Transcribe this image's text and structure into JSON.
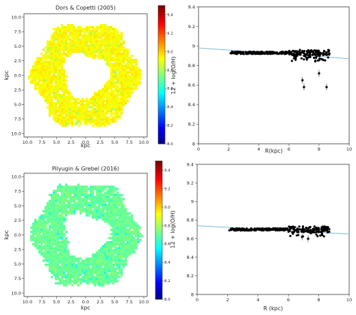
{
  "chart_data": [
    {
      "type": "heatmap",
      "title": "Dors & Copetti (2005)",
      "xlabel": "kpc",
      "ylabel": "kpc",
      "xticks": [
        "10.0",
        "7.5",
        "5.0",
        "2.5",
        "0.0",
        "2.5",
        "5.0",
        "7.5",
        "10.0"
      ],
      "yticks": [
        "10.0",
        "7.5",
        "5.0",
        "2.5",
        "0.0",
        "2.5",
        "5.0",
        "7.5",
        "10.0"
      ],
      "xlim": [
        -10,
        10
      ],
      "ylim": [
        -10,
        10
      ],
      "colorbar": {
        "ticks": [
          "9.4",
          "9.2",
          "9.0",
          "8.8",
          "8.6",
          "8.4",
          "8.2",
          "8.0"
        ],
        "range": [
          8.0,
          9.5
        ]
      },
      "map": {
        "shape": "ring",
        "inner_radius_kpc": 3.5,
        "outer_radius_kpc": 9.5,
        "typical_value": 8.94
      }
    },
    {
      "type": "scatter",
      "xlabel": "R(kpc)",
      "ylabel": "12 + log(O/H)",
      "xticks": [
        "0",
        "2",
        "4",
        "6",
        "8",
        "10"
      ],
      "yticks": [
        "9.4",
        "9.2",
        "9",
        "8.8",
        "8.6",
        "8.4",
        "8.2",
        "8"
      ],
      "xlim": [
        0,
        10
      ],
      "ylim": [
        8.0,
        9.4
      ],
      "fit_line": {
        "x": [
          0,
          10
        ],
        "y": [
          8.98,
          8.87
        ]
      },
      "points_summary": {
        "r_range": [
          2.1,
          8.7
        ],
        "typical_y": 8.93,
        "outliers": [
          [
            6.9,
            8.65
          ],
          [
            7.0,
            8.58
          ],
          [
            8.0,
            8.72
          ],
          [
            8.5,
            8.58
          ]
        ]
      }
    },
    {
      "type": "heatmap",
      "title": "Pilyugin & Grebel (2016)",
      "xlabel": "kpc",
      "ylabel": "kpc",
      "xticks": [
        "10.0",
        "7.5",
        "5.0",
        "2.5",
        "0.0",
        "2.5",
        "5.0",
        "7.5",
        "10.0"
      ],
      "yticks": [
        "10.0",
        "7.5",
        "5.0",
        "2.5",
        "0.0",
        "2.5",
        "5.0",
        "7.5",
        "10.0"
      ],
      "xlim": [
        -10,
        10
      ],
      "ylim": [
        -10,
        10
      ],
      "colorbar": {
        "ticks": [
          "9.4",
          "9.2",
          "9.0",
          "8.8",
          "8.6",
          "8.4",
          "8.2",
          "8.0"
        ],
        "range": [
          8.0,
          9.5
        ]
      },
      "map": {
        "shape": "ring",
        "inner_radius_kpc": 3.5,
        "outer_radius_kpc": 9.5,
        "typical_value": 8.72
      }
    },
    {
      "type": "scatter",
      "xlabel": "R (kpc)",
      "ylabel": "12 + log(O/H)",
      "xticks": [
        "0",
        "2",
        "4",
        "6",
        "8",
        "10"
      ],
      "yticks": [
        "9.4",
        "9.2",
        "9",
        "8.8",
        "8.6",
        "8.4",
        "8.2",
        "8"
      ],
      "xlim": [
        0,
        10
      ],
      "ylim": [
        8.0,
        9.4
      ],
      "fit_line": {
        "x": [
          0,
          10
        ],
        "y": [
          8.74,
          8.65
        ]
      },
      "points_summary": {
        "r_range": [
          2.1,
          8.7
        ],
        "typical_y": 8.7,
        "outliers": [
          [
            6.9,
            8.62
          ],
          [
            7.3,
            8.6
          ]
        ]
      }
    }
  ]
}
